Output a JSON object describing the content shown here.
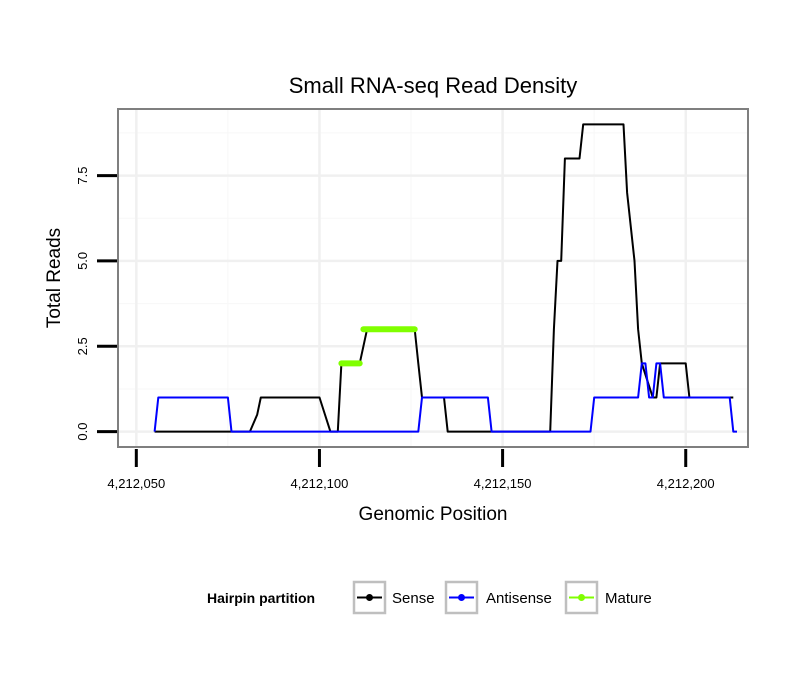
{
  "chart_data": {
    "type": "line",
    "title": "Small RNA-seq Read Density",
    "xlabel": "Genomic Position",
    "ylabel": "Total Reads",
    "xlim": [
      4212045,
      4212217
    ],
    "ylim": [
      -0.45,
      9.45
    ],
    "x_ticks": [
      4212050,
      4212100,
      4212150,
      4212200
    ],
    "x_tick_labels": [
      "4,212,050",
      "4,212,100",
      "4,212,150",
      "4,212,200"
    ],
    "y_ticks": [
      0,
      2.5,
      5,
      7.5
    ],
    "y_tick_labels": [
      "0.0",
      "2.5",
      "5.0",
      "7.5"
    ],
    "grid": true,
    "legend": {
      "title": "Hairpin partition",
      "position": "bottom"
    },
    "series": [
      {
        "name": "Sense",
        "color": "#000000",
        "stroke": 2,
        "x": [
          4212055,
          4212081,
          4212083,
          4212084,
          4212100,
          4212103,
          4212105,
          4212106,
          4212107,
          4212111,
          4212113,
          4212126,
          4212127,
          4212128,
          4212134,
          4212135,
          4212163,
          4212164,
          4212165,
          4212166,
          4212167,
          4212171,
          4212172,
          4212183,
          4212184,
          4212186,
          4212187,
          4212188,
          4212191,
          4212192,
          4212193,
          4212194,
          4212200,
          4212201,
          4212202,
          4212213
        ],
        "values": [
          0,
          0,
          0.5,
          1,
          1,
          0,
          0,
          2,
          2,
          2,
          3,
          3,
          2,
          1,
          1,
          0,
          0,
          3,
          5,
          5,
          8,
          8,
          9,
          9,
          7,
          5,
          3,
          2,
          1,
          1,
          2,
          2,
          2,
          1,
          1,
          1
        ]
      },
      {
        "name": "Antisense",
        "color": "#0000ff",
        "stroke": 2,
        "x": [
          4212055,
          4212056,
          4212075,
          4212076,
          4212127,
          4212128,
          4212146,
          4212147,
          4212174,
          4212175,
          4212187,
          4212188,
          4212189,
          4212190,
          4212191,
          4212192,
          4212193,
          4212194,
          4212212,
          4212213,
          4212214
        ],
        "values": [
          0,
          1,
          1,
          0,
          0,
          1,
          1,
          0,
          0,
          1,
          1,
          2,
          2,
          1,
          1,
          2,
          2,
          1,
          1,
          0,
          0
        ]
      },
      {
        "name": "Mature",
        "color": "#80ff00",
        "stroke": 6,
        "x": [
          4212106,
          4212107,
          4212108,
          4212109,
          4212110,
          4212111,
          4212112,
          4212113,
          4212114,
          4212115,
          4212116,
          4212117,
          4212118,
          4212119,
          4212120,
          4212121,
          4212122,
          4212123,
          4212124,
          4212125,
          4212126
        ],
        "values": [
          2,
          2,
          2,
          2,
          2,
          2,
          3,
          3,
          3,
          3,
          3,
          3,
          3,
          3,
          3,
          3,
          3,
          3,
          3,
          3,
          3
        ],
        "segments": [
          [
            0,
            5
          ],
          [
            6,
            20
          ]
        ]
      }
    ]
  }
}
